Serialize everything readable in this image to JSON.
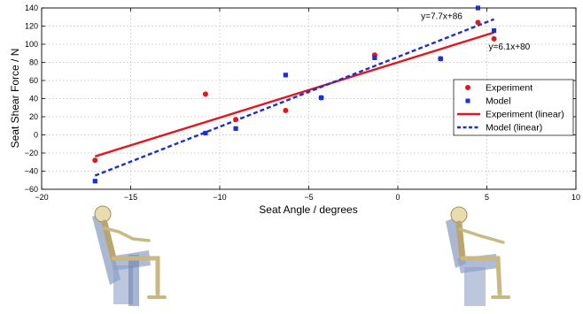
{
  "chart_data": {
    "type": "scatter",
    "xlabel": "Seat Angle / degrees",
    "ylabel": "Seat Shear Force / N",
    "xlim": [
      -20,
      10
    ],
    "ylim": [
      -60,
      140
    ],
    "x_ticks": [
      "−20",
      "−15",
      "−10",
      "−5",
      "0",
      "5",
      "10"
    ],
    "y_ticks": [
      "−60",
      "−40",
      "−20",
      "0",
      "20",
      "40",
      "60",
      "80",
      "100",
      "120",
      "140"
    ],
    "grid": true,
    "legend_position": "right",
    "colors": {
      "experiment": "#e8141b",
      "model": "#1a2fd6"
    },
    "series": [
      {
        "name": "Experiment",
        "kind": "points",
        "marker": "circle",
        "points": [
          [
            -17.0,
            -28
          ],
          [
            -10.8,
            45
          ],
          [
            -9.1,
            17
          ],
          [
            -6.3,
            27
          ],
          [
            -4.3,
            41
          ],
          [
            -1.3,
            88
          ],
          [
            2.4,
            84
          ],
          [
            4.5,
            124
          ],
          [
            5.4,
            106
          ]
        ]
      },
      {
        "name": "Model",
        "kind": "points",
        "marker": "square",
        "points": [
          [
            -17.0,
            -51
          ],
          [
            -10.8,
            2
          ],
          [
            -9.1,
            7
          ],
          [
            -6.3,
            66
          ],
          [
            -4.3,
            41
          ],
          [
            -1.3,
            85
          ],
          [
            2.4,
            84
          ],
          [
            4.5,
            140
          ],
          [
            5.4,
            115
          ]
        ]
      },
      {
        "name": "Experiment (linear)",
        "kind": "line",
        "style": "solid",
        "slope": 6.1,
        "intercept": 80,
        "x_range": [
          -17.0,
          5.4
        ]
      },
      {
        "name": "Model (linear)",
        "kind": "line",
        "style": "dashed",
        "slope": 7.7,
        "intercept": 86,
        "x_range": [
          -17.0,
          5.4
        ]
      }
    ],
    "annotations": [
      {
        "text": "y=7.7x+86",
        "x": 1.3,
        "y": 128
      },
      {
        "text": "y=6.1x+80",
        "x": 5.1,
        "y": 94
      }
    ]
  }
}
